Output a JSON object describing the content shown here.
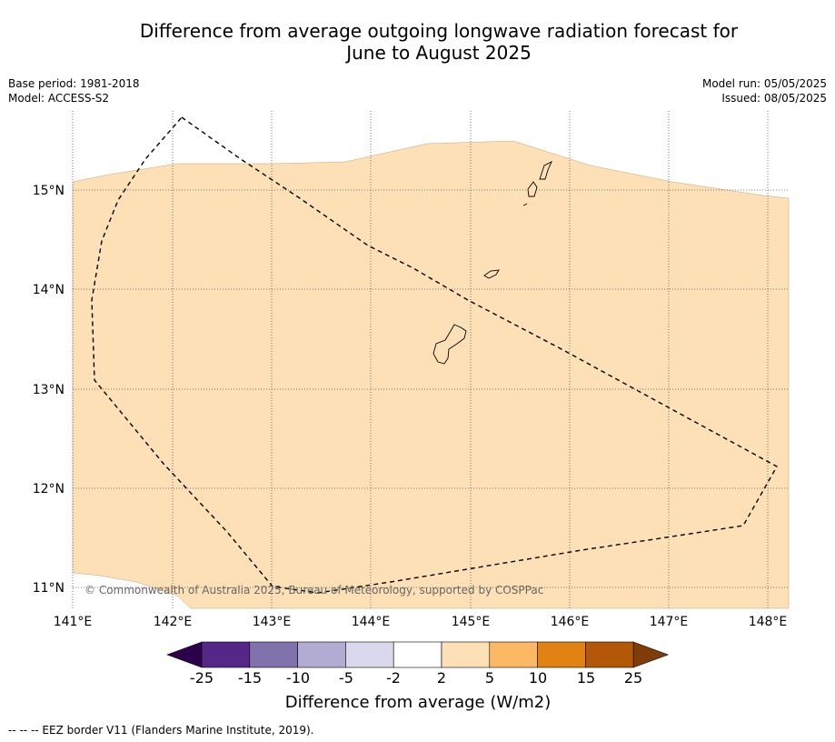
{
  "title_line1": "Difference from average outgoing longwave radiation forecast for",
  "title_line2": "June to August 2025",
  "meta": {
    "base_period": "Base period: 1981-2018",
    "model": "Model: ACCESS-S2",
    "model_run": "Model run: 05/05/2025",
    "issued": "Issued: 08/05/2025"
  },
  "map": {
    "lon_ticks": [
      "141°E",
      "142°E",
      "143°E",
      "144°E",
      "145°E",
      "146°E",
      "147°E",
      "148°E"
    ],
    "lat_ticks": [
      "15°N",
      "14°N",
      "13°N",
      "12°N",
      "11°N"
    ],
    "copyright": "© Commonwealth of Australia 2025, Bureau of Meteorology, supported by COSPPac",
    "fill_color": "#fde0b6"
  },
  "colorbar": {
    "ticks": [
      "-25",
      "-15",
      "-10",
      "-5",
      "-2",
      "2",
      "5",
      "10",
      "15",
      "25"
    ],
    "colors": [
      "#2d004b",
      "#542788",
      "#8073ac",
      "#b2abd2",
      "#d8daeb",
      "#ffffff",
      "#fde0b6",
      "#fdb863",
      "#e08214",
      "#b35806",
      "#7f3b08"
    ],
    "label": "Difference from average (W/m2)"
  },
  "footer": "--  --  -- EEZ border V11 (Flanders Marine Institute, 2019)."
}
